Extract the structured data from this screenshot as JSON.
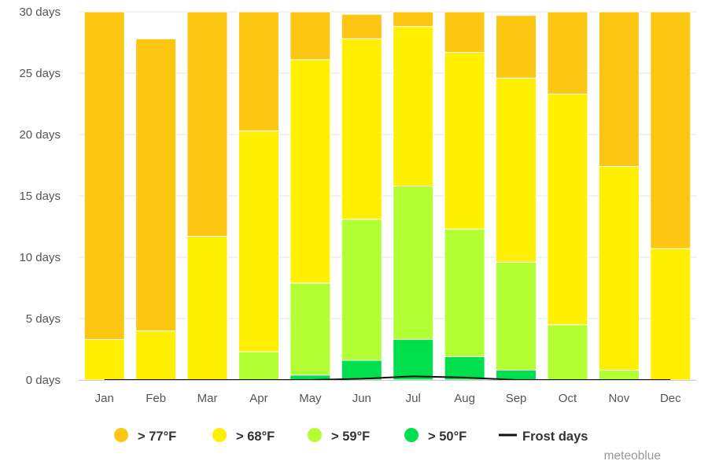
{
  "chart_data": {
    "type": "bar",
    "stacked": true,
    "categories": [
      "Jan",
      "Feb",
      "Mar",
      "Apr",
      "May",
      "Jun",
      "Jul",
      "Aug",
      "Sep",
      "Oct",
      "Nov",
      "Dec"
    ],
    "y_unit": "days",
    "ylim": [
      0,
      30
    ],
    "yticks": [
      0,
      5,
      10,
      15,
      20,
      25,
      30
    ],
    "ytick_labels": [
      "0 days",
      "5 days",
      "10 days",
      "15 days",
      "20 days",
      "25 days",
      "30 days"
    ],
    "grid": true,
    "legend_position": "bottom",
    "series": [
      {
        "name": "> 50°F",
        "color": "#00e04f",
        "values": [
          0,
          0,
          0,
          0,
          0.4,
          1.6,
          3.3,
          1.9,
          0.8,
          0,
          0,
          0
        ]
      },
      {
        "name": "> 59°F",
        "color": "#b2ff33",
        "values": [
          0,
          0,
          0,
          2.3,
          7.5,
          11.5,
          12.5,
          10.4,
          8.8,
          4.5,
          0.8,
          0
        ]
      },
      {
        "name": "> 68°F",
        "color": "#ffef00",
        "values": [
          3.3,
          4.0,
          11.7,
          18.0,
          18.2,
          14.7,
          13.0,
          14.4,
          15.0,
          18.8,
          16.6,
          10.7
        ]
      },
      {
        "name": "> 77°F",
        "color": "#fcc612",
        "values": [
          26.7,
          23.8,
          18.3,
          9.7,
          3.9,
          2.0,
          1.2,
          3.3,
          5.1,
          6.7,
          12.6,
          19.3
        ]
      }
    ],
    "line_series": {
      "name": "Frost days",
      "color": "#111111",
      "values": [
        0,
        0,
        0,
        0,
        0,
        0.1,
        0.3,
        0.2,
        0,
        0,
        0,
        0
      ]
    },
    "legend_order": [
      "> 77°F",
      "> 68°F",
      "> 59°F",
      "> 50°F",
      "Frost days"
    ]
  },
  "credit": "meteoblue"
}
